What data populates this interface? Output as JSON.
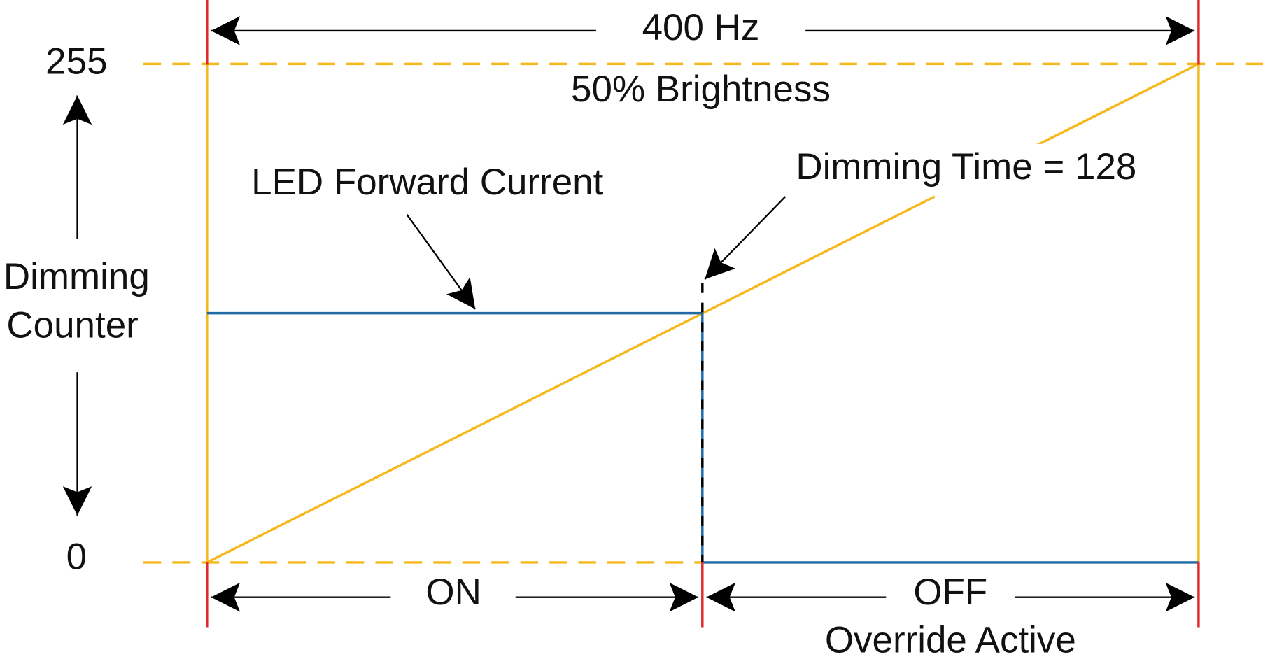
{
  "title": "400 Hz",
  "subtitle": "50% Brightness",
  "y_axis": {
    "label_lines": [
      "Dimming",
      "Counter"
    ],
    "top": "255",
    "bottom": "0"
  },
  "annotations": {
    "led_current": "LED Forward Current",
    "dimming_time": "Dimming Time = 128"
  },
  "phases": {
    "on": "ON",
    "off": "OFF",
    "off_note": "Override Active"
  }
}
